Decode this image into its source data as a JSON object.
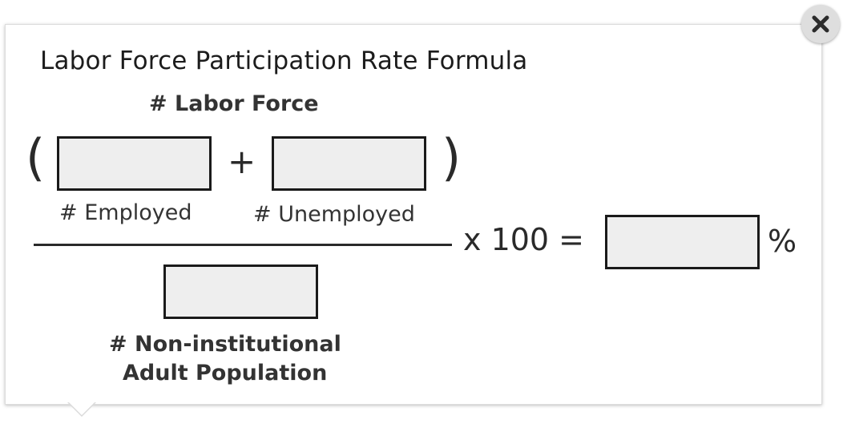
{
  "popup": {
    "title": "Labor Force Participation Rate Formula",
    "close_icon": "close-icon"
  },
  "formula": {
    "labor_force_label": "# Labor Force",
    "left_paren": "(",
    "right_paren": ")",
    "plus_sign": "+",
    "employed_label": "# Employed",
    "unemployed_label": "# Unemployed",
    "multiplier_text": "x 100 =",
    "population_label_line1": "# Non-institutional",
    "population_label_line2": "Adult Population",
    "percent_sign": "%",
    "inputs": {
      "employed_value": "",
      "unemployed_value": "",
      "population_value": "",
      "result_value": ""
    }
  }
}
